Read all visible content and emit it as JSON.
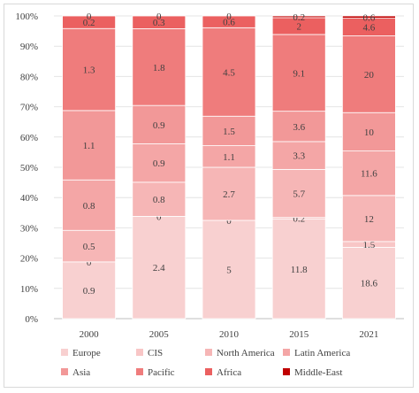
{
  "chart_data": {
    "type": "bar",
    "stacked": true,
    "percent_stacked": true,
    "categories": [
      "2000",
      "2005",
      "2010",
      "2015",
      "2021"
    ],
    "y_ticks": [
      "0%",
      "10%",
      "20%",
      "30%",
      "40%",
      "50%",
      "60%",
      "70%",
      "80%",
      "90%",
      "100%"
    ],
    "ylim": [
      0,
      100
    ],
    "legend_position": "bottom",
    "series": [
      {
        "name": "Europe",
        "color": "#f8d0d0",
        "values": [
          0.9,
          2.4,
          5,
          11.8,
          18.6
        ]
      },
      {
        "name": "CIS",
        "color": "#f8c6c6",
        "values": [
          0,
          0,
          0,
          0.2,
          1.5
        ]
      },
      {
        "name": "North America",
        "color": "#f6b6b6",
        "values": [
          0.5,
          0.8,
          2.7,
          5.7,
          12
        ]
      },
      {
        "name": "Latin America",
        "color": "#f4a6a6",
        "values": [
          0.8,
          0.9,
          1.1,
          3.3,
          11.6
        ]
      },
      {
        "name": "Asia",
        "color": "#f29898",
        "values": [
          1.1,
          0.9,
          1.5,
          3.6,
          10
        ]
      },
      {
        "name": "Pacific",
        "color": "#ef7c7c",
        "values": [
          1.3,
          1.8,
          4.5,
          9.1,
          20
        ]
      },
      {
        "name": "Africa",
        "color": "#eb6060",
        "values": [
          0.2,
          0.3,
          0.6,
          2,
          4.6
        ]
      },
      {
        "name": "Middle-East",
        "color": "#c00000",
        "values": [
          0,
          0,
          0,
          0.2,
          0.6
        ]
      }
    ],
    "data_labels": [
      [
        "0.9",
        "2.4",
        "5",
        "11.8",
        "18.6"
      ],
      [
        "0",
        "0",
        "0",
        "0.2",
        "1.5"
      ],
      [
        "0.5",
        "0.8",
        "2.7",
        "5.7",
        "12"
      ],
      [
        "0.8",
        "0.9",
        "1.1",
        "3.3",
        "11.6"
      ],
      [
        "1.1",
        "0.9",
        "1.5",
        "3.6",
        "10"
      ],
      [
        "1.3",
        "1.8",
        "4.5",
        "9.1",
        "20"
      ],
      [
        "0.2",
        "0.3",
        "0.6",
        "2",
        "4.6"
      ],
      [
        "0",
        "0",
        "0",
        "0.2",
        "0.6"
      ]
    ]
  }
}
